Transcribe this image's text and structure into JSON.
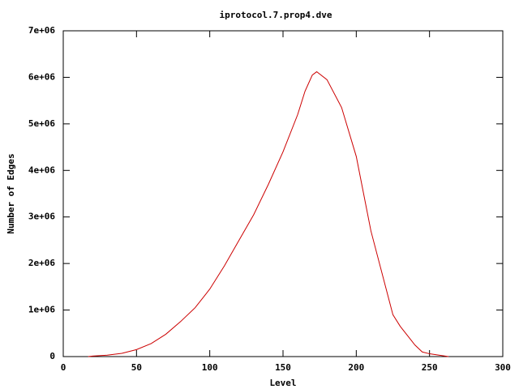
{
  "chart_data": {
    "type": "line",
    "title": "iprotocol.7.prop4.dve",
    "x_label": "Level",
    "y_label": "Number of Edges",
    "series": [
      {
        "color": "#cc0000",
        "x": [
          17,
          20,
          30,
          40,
          50,
          60,
          70,
          80,
          90,
          100,
          110,
          120,
          130,
          140,
          150,
          160,
          165,
          170,
          173,
          180,
          190,
          200,
          210,
          220,
          225,
          230,
          240,
          245,
          250,
          263
        ],
        "values": [
          0,
          10000,
          30000,
          70000,
          150000,
          280000,
          480000,
          750000,
          1050000,
          1450000,
          1950000,
          2500000,
          3050000,
          3700000,
          4400000,
          5200000,
          5700000,
          6050000,
          6120000,
          5950000,
          5350000,
          4300000,
          2700000,
          1500000,
          900000,
          650000,
          250000,
          100000,
          60000,
          0
        ]
      }
    ],
    "xlim": [
      0,
      300
    ],
    "xticks": [
      0,
      50,
      100,
      150,
      200,
      250,
      300
    ],
    "ylim": [
      0,
      7000000
    ],
    "yticks": [
      0,
      {
        "value": 1000000,
        "label": "1e+06"
      },
      {
        "value": 2000000,
        "label": "2e+06"
      },
      {
        "value": 3000000,
        "label": "3e+06"
      },
      {
        "value": 4000000,
        "label": "4e+06"
      },
      {
        "value": 5000000,
        "label": "5e+06"
      },
      {
        "value": 6000000,
        "label": "6e+06"
      },
      {
        "value": 7000000,
        "label": "7e+06"
      }
    ]
  }
}
